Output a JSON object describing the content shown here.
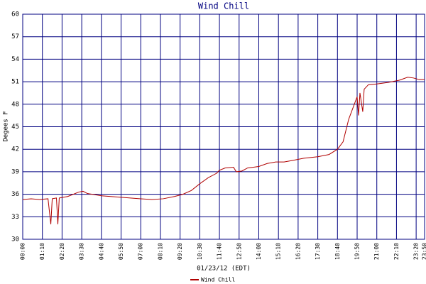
{
  "chart_data": {
    "type": "line",
    "title": "Wind Chill",
    "xlabel": "01/23/12 (EDT)",
    "ylabel": "Degees F",
    "xlim": [
      0,
      1430
    ],
    "ylim": [
      30,
      60
    ],
    "grid": true,
    "legend": "bottom",
    "xticks": [
      {
        "value": 0,
        "label": "00:00"
      },
      {
        "value": 70,
        "label": "01:10"
      },
      {
        "value": 140,
        "label": "02:20"
      },
      {
        "value": 210,
        "label": "03:30"
      },
      {
        "value": 280,
        "label": "04:40"
      },
      {
        "value": 350,
        "label": "05:50"
      },
      {
        "value": 420,
        "label": "07:00"
      },
      {
        "value": 490,
        "label": "08:10"
      },
      {
        "value": 560,
        "label": "09:20"
      },
      {
        "value": 630,
        "label": "10:30"
      },
      {
        "value": 700,
        "label": "11:40"
      },
      {
        "value": 770,
        "label": "12:50"
      },
      {
        "value": 840,
        "label": "14:00"
      },
      {
        "value": 910,
        "label": "15:10"
      },
      {
        "value": 980,
        "label": "16:20"
      },
      {
        "value": 1050,
        "label": "17:30"
      },
      {
        "value": 1120,
        "label": "18:40"
      },
      {
        "value": 1190,
        "label": "19:50"
      },
      {
        "value": 1260,
        "label": "21:00"
      },
      {
        "value": 1330,
        "label": "22:10"
      },
      {
        "value": 1400,
        "label": "23:20"
      },
      {
        "value": 1430,
        "label": "23:50"
      }
    ],
    "yticks": [
      30,
      33,
      36,
      39,
      42,
      45,
      48,
      51,
      54,
      57,
      60
    ],
    "x": [
      0,
      30,
      60,
      90,
      100,
      105,
      120,
      125,
      130,
      160,
      180,
      200,
      215,
      230,
      280,
      350,
      420,
      460,
      500,
      540,
      570,
      600,
      630,
      660,
      690,
      700,
      720,
      750,
      760,
      780,
      800,
      840,
      870,
      900,
      930,
      960,
      1000,
      1050,
      1090,
      1120,
      1140,
      1160,
      1180,
      1190,
      1195,
      1200,
      1210,
      1215,
      1230,
      1260,
      1300,
      1340,
      1370,
      1390,
      1410,
      1430
    ],
    "series": [
      {
        "name": "Wind Chill",
        "color": "#b00000",
        "values": [
          35.3,
          35.4,
          35.3,
          35.4,
          32,
          35.4,
          35.5,
          32,
          35.5,
          35.7,
          36.0,
          36.3,
          36.4,
          36.1,
          35.8,
          35.6,
          35.4,
          35.3,
          35.4,
          35.7,
          36.0,
          36.5,
          37.4,
          38.2,
          38.8,
          39.2,
          39.5,
          39.6,
          39.0,
          39.1,
          39.5,
          39.7,
          40.1,
          40.3,
          40.3,
          40.5,
          40.8,
          41.0,
          41.3,
          42.0,
          43.0,
          46,
          48,
          49,
          46.5,
          49.5,
          47,
          50,
          50.6,
          50.7,
          50.9,
          51.2,
          51.6,
          51.5,
          51.3,
          51.3
        ]
      }
    ]
  }
}
